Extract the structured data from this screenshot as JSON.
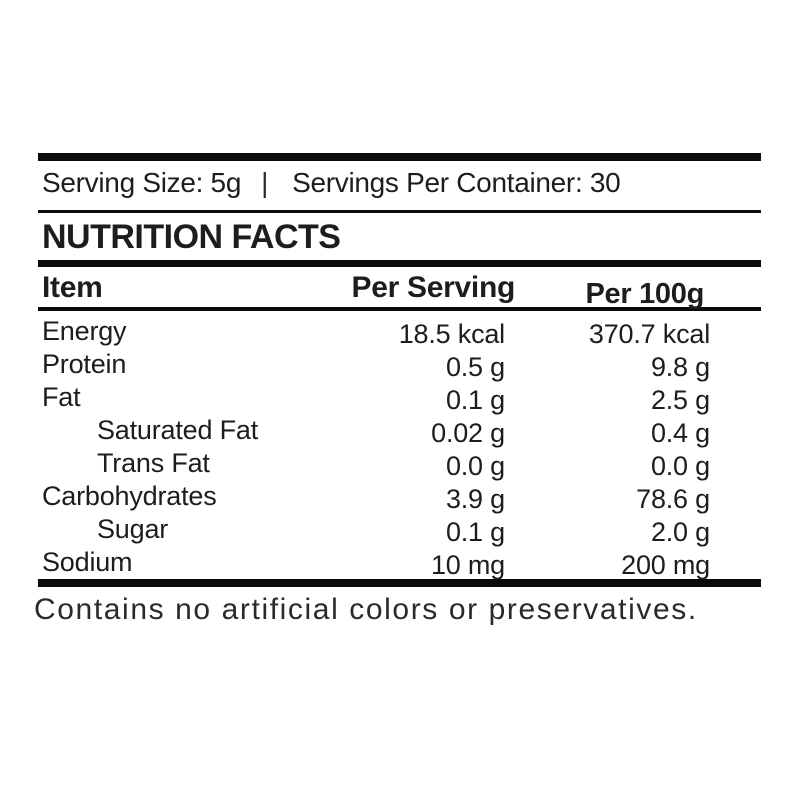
{
  "serving_info": {
    "serving_size": "Serving Size: 5g",
    "separator": "|",
    "servings_per_container": "Servings Per Container: 30"
  },
  "title": "NUTRITION FACTS",
  "table": {
    "columns": [
      "Item",
      "Per Serving",
      "Per 100g"
    ],
    "rows": [
      {
        "item": "Energy",
        "indent": false,
        "per_serving": "18.5 kcal",
        "per_100g": "370.7 kcal"
      },
      {
        "item": "Protein",
        "indent": false,
        "per_serving": "0.5 g",
        "per_100g": "9.8 g"
      },
      {
        "item": "Fat",
        "indent": false,
        "per_serving": "0.1 g",
        "per_100g": "2.5 g"
      },
      {
        "item": "Saturated Fat",
        "indent": true,
        "per_serving": "0.02 g",
        "per_100g": "0.4 g"
      },
      {
        "item": "Trans Fat",
        "indent": true,
        "per_serving": "0.0 g",
        "per_100g": "0.0 g"
      },
      {
        "item": "Carbohydrates",
        "indent": false,
        "per_serving": "3.9 g",
        "per_100g": "78.6 g"
      },
      {
        "item": "Sugar",
        "indent": true,
        "per_serving": "0.1 g",
        "per_100g": "2.0 g"
      },
      {
        "item": "Sodium",
        "indent": false,
        "per_serving": "10 mg",
        "per_100g": "200 mg"
      }
    ]
  },
  "footer": {
    "note": "Contains no artificial colors or preservatives."
  },
  "colors": {
    "background": "#ffffff",
    "text": "#1d1d1d",
    "rule": "#0b0b0b"
  }
}
